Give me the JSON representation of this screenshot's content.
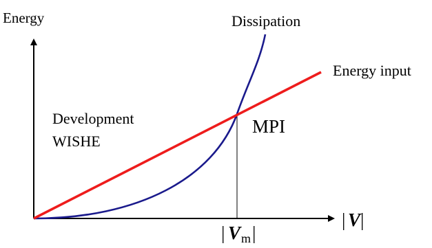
{
  "labels": {
    "y_axis": "Energy",
    "dissipation": "Dissipation",
    "energy_input": "Energy input",
    "development_line1": "Development",
    "development_line2": "WISHE",
    "mpi": "MPI",
    "x_axis_bar": "|",
    "x_axis_symbol": "V",
    "vm_symbol": "V",
    "vm_subscript": "m"
  },
  "colors": {
    "axis": "#000000",
    "energy_input_line": "#ee1c1c",
    "dissipation_curve": "#1a1a8c",
    "marker_line": "#000000",
    "background": "#ffffff"
  }
}
